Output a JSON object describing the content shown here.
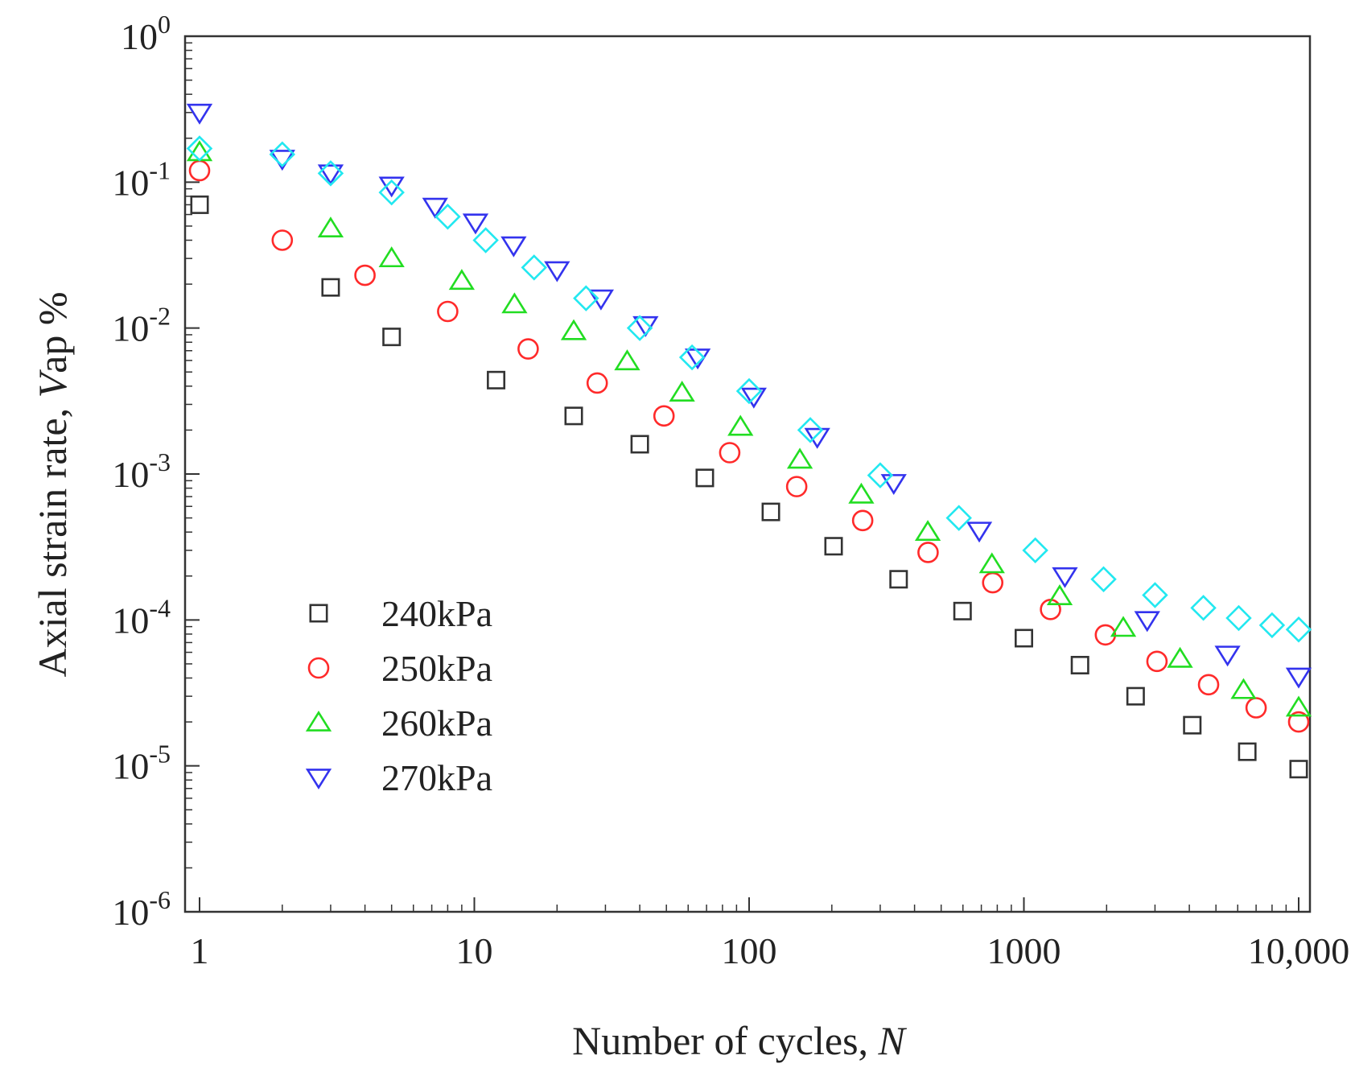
{
  "chart_data": {
    "type": "scatter",
    "x_scale": "log",
    "y_scale": "log",
    "xlim": [
      1,
      10000
    ],
    "ylim": [
      1e-06,
      1
    ],
    "xlabel": "Number of cycles, ",
    "xlabel_italic": "N",
    "ylabel_prefix": "Axial strain rate, ",
    "ylabel_italic": "V",
    "ylabel_suffix": "ap %",
    "x_ticks": [
      "1",
      "10",
      "100",
      "1000",
      "10,000"
    ],
    "y_ticks": [
      {
        "base": "10",
        "exp": "0"
      },
      {
        "base": "10",
        "exp": "-1"
      },
      {
        "base": "10",
        "exp": "-2"
      },
      {
        "base": "10",
        "exp": "-3"
      },
      {
        "base": "10",
        "exp": "-4"
      },
      {
        "base": "10",
        "exp": "-5"
      },
      {
        "base": "10",
        "exp": "-6"
      }
    ],
    "legend_position": "lower-left",
    "grid": false,
    "series": [
      {
        "name": "240kPa",
        "marker": "square",
        "color": "#333333",
        "in_legend": true,
        "x": [
          1,
          3,
          5,
          12,
          23,
          40,
          69,
          120,
          203,
          350,
          598,
          1000,
          1600,
          2550,
          4100,
          6500,
          10000
        ],
        "y": [
          0.07,
          0.019,
          0.0087,
          0.0044,
          0.0025,
          0.0016,
          0.00094,
          0.00055,
          0.00032,
          0.00019,
          0.000115,
          7.5e-05,
          4.9e-05,
          3e-05,
          1.9e-05,
          1.25e-05,
          9.5e-06
        ]
      },
      {
        "name": "250kPa",
        "marker": "circle",
        "color": "#ff2a2a",
        "in_legend": true,
        "x": [
          1,
          2,
          4,
          8,
          15.7,
          28,
          49,
          85,
          149,
          259,
          448,
          770,
          1250,
          1980,
          3050,
          4700,
          7000,
          10000
        ],
        "y": [
          0.12,
          0.04,
          0.023,
          0.013,
          0.0072,
          0.0042,
          0.0025,
          0.0014,
          0.00082,
          0.00048,
          0.00029,
          0.00018,
          0.000118,
          7.9e-05,
          5.2e-05,
          3.6e-05,
          2.5e-05,
          2e-05
        ]
      },
      {
        "name": "260kPa",
        "marker": "triangle-up",
        "color": "#22dd22",
        "in_legend": true,
        "x": [
          1,
          3,
          5,
          9,
          14,
          23,
          36,
          57,
          93,
          153,
          256,
          447,
          765,
          1350,
          2300,
          3700,
          6300,
          10000
        ],
        "y": [
          0.16,
          0.048,
          0.03,
          0.021,
          0.0145,
          0.0095,
          0.0059,
          0.0036,
          0.0021,
          0.00125,
          0.00072,
          0.0004,
          0.00024,
          0.000145,
          8.8e-05,
          5.4e-05,
          3.3e-05,
          2.5e-05
        ]
      },
      {
        "name": "270kPa",
        "marker": "triangle-down",
        "color": "#3333ee",
        "in_legend": true,
        "x": [
          1,
          2,
          3,
          5,
          7.2,
          10.1,
          13.9,
          20,
          28.9,
          42,
          65,
          104,
          177,
          336,
          688,
          1410,
          2810,
          5510,
          10000
        ],
        "y": [
          0.3,
          0.145,
          0.115,
          0.095,
          0.068,
          0.053,
          0.037,
          0.025,
          0.016,
          0.0105,
          0.0063,
          0.0034,
          0.0018,
          0.00087,
          0.00041,
          0.0002,
          0.0001,
          5.8e-05,
          4.1e-05
        ]
      },
      {
        "name": "",
        "marker": "diamond",
        "color": "#22e8f0",
        "in_legend": false,
        "x": [
          1,
          2,
          3,
          5,
          8,
          11,
          16.5,
          25.5,
          40,
          62,
          100,
          167,
          300,
          580,
          1100,
          1950,
          3000,
          4500,
          6050,
          8000,
          10000
        ],
        "y": [
          0.17,
          0.155,
          0.115,
          0.085,
          0.058,
          0.04,
          0.026,
          0.016,
          0.01,
          0.0063,
          0.0037,
          0.002,
          0.00098,
          0.0005,
          0.0003,
          0.00019,
          0.000148,
          0.000121,
          0.000103,
          9.2e-05,
          8.6e-05
        ]
      }
    ]
  }
}
